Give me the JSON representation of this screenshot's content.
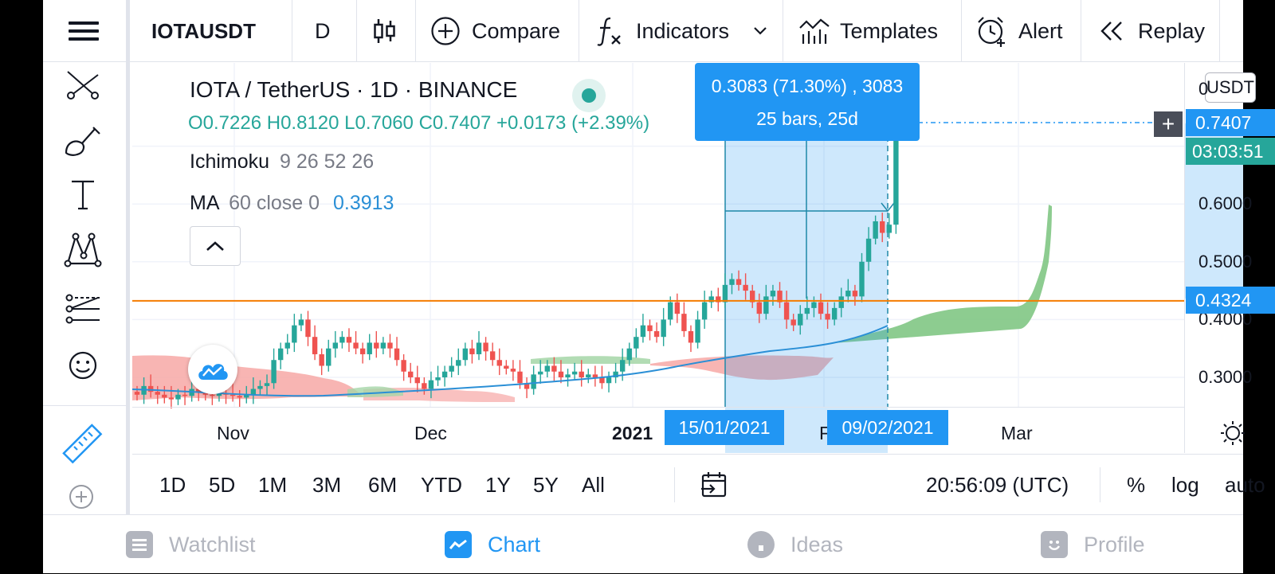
{
  "toolbar": {
    "symbol": "IOTAUSDT",
    "interval": "D",
    "compare": "Compare",
    "indicators": "Indicators",
    "templates": "Templates",
    "alert": "Alert",
    "replay": "Replay"
  },
  "legend": {
    "title": "IOTA / TetherUS · 1D · BINANCE",
    "ohlc": "O0.7226 H0.8120 L0.7060 C0.7407 +0.0173 (+2.39%)",
    "ichimoku_name": "Ichimoku",
    "ichimoku_params": "9 26 52 26",
    "ma_name": "MA",
    "ma_params": "60 close 0",
    "ma_value": "0.3913"
  },
  "measure": {
    "line1": "0.3083 (71.30%) , 3083",
    "line2": "25 bars, 25d",
    "start_date": "15/01/2021",
    "end_date": "09/02/2021"
  },
  "price_axis": {
    "currency": "USDT",
    "ticks": [
      "0.6000",
      "0.5000",
      "0.4000",
      "0.3000"
    ],
    "top_partial": "0",
    "last_price": "0.7407",
    "countdown": "03:03:51",
    "line_price": "0.4324"
  },
  "time_axis": {
    "labels": [
      "Nov",
      "Dec",
      "2021",
      "F",
      "Mar"
    ]
  },
  "range_bar": {
    "ranges": [
      "1D",
      "5D",
      "1M",
      "3M",
      "6M",
      "YTD",
      "1Y",
      "5Y",
      "All"
    ],
    "clock": "20:56:09 (UTC)",
    "percent": "%",
    "log": "log",
    "auto": "auto"
  },
  "nav": {
    "watchlist": "Watchlist",
    "chart": "Chart",
    "ideas": "Ideas",
    "profile": "Profile"
  },
  "colors": {
    "up": "#26a69a",
    "down": "#ef5350",
    "accent": "#2196f3",
    "hline": "#f57c00",
    "ma": "#2a8fd6"
  }
}
